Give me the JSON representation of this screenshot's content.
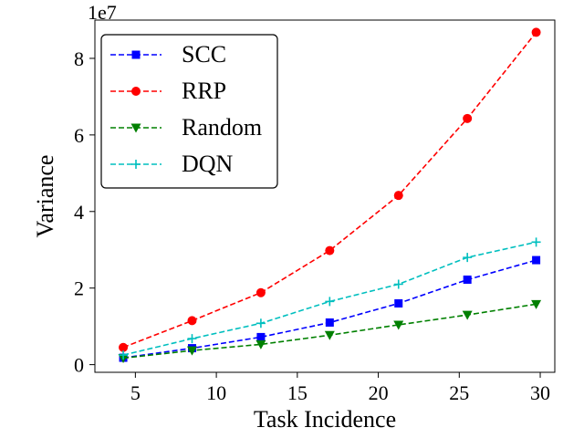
{
  "chart_data": {
    "type": "line",
    "title": "",
    "xlabel": "Task Incidence",
    "ylabel": "Variance",
    "offset_label": "1e7",
    "x": [
      4.25,
      8.5,
      12.75,
      17.0,
      21.25,
      25.5,
      29.75
    ],
    "xlim": [
      2.5,
      30.9
    ],
    "ylim": [
      -0.2,
      9.0
    ],
    "x_ticks": [
      5,
      10,
      15,
      20,
      25,
      30
    ],
    "y_ticks": [
      0,
      2,
      4,
      6,
      8
    ],
    "grid": false,
    "legend_position": "top-left",
    "series": [
      {
        "name": "SCC",
        "color": "#0000ff",
        "marker": "square",
        "values": [
          0.18,
          0.43,
          0.72,
          1.1,
          1.6,
          2.22,
          2.73
        ]
      },
      {
        "name": "RRP",
        "color": "#ff0000",
        "marker": "circle",
        "values": [
          0.45,
          1.15,
          1.88,
          2.98,
          4.42,
          6.43,
          8.68
        ]
      },
      {
        "name": "Random",
        "color": "#008000",
        "marker": "triangle-down",
        "values": [
          0.17,
          0.37,
          0.53,
          0.77,
          1.04,
          1.3,
          1.58
        ]
      },
      {
        "name": "DQN",
        "color": "#00bfbf",
        "marker": "plus",
        "values": [
          0.25,
          0.68,
          1.08,
          1.65,
          2.1,
          2.8,
          3.2
        ]
      }
    ]
  }
}
